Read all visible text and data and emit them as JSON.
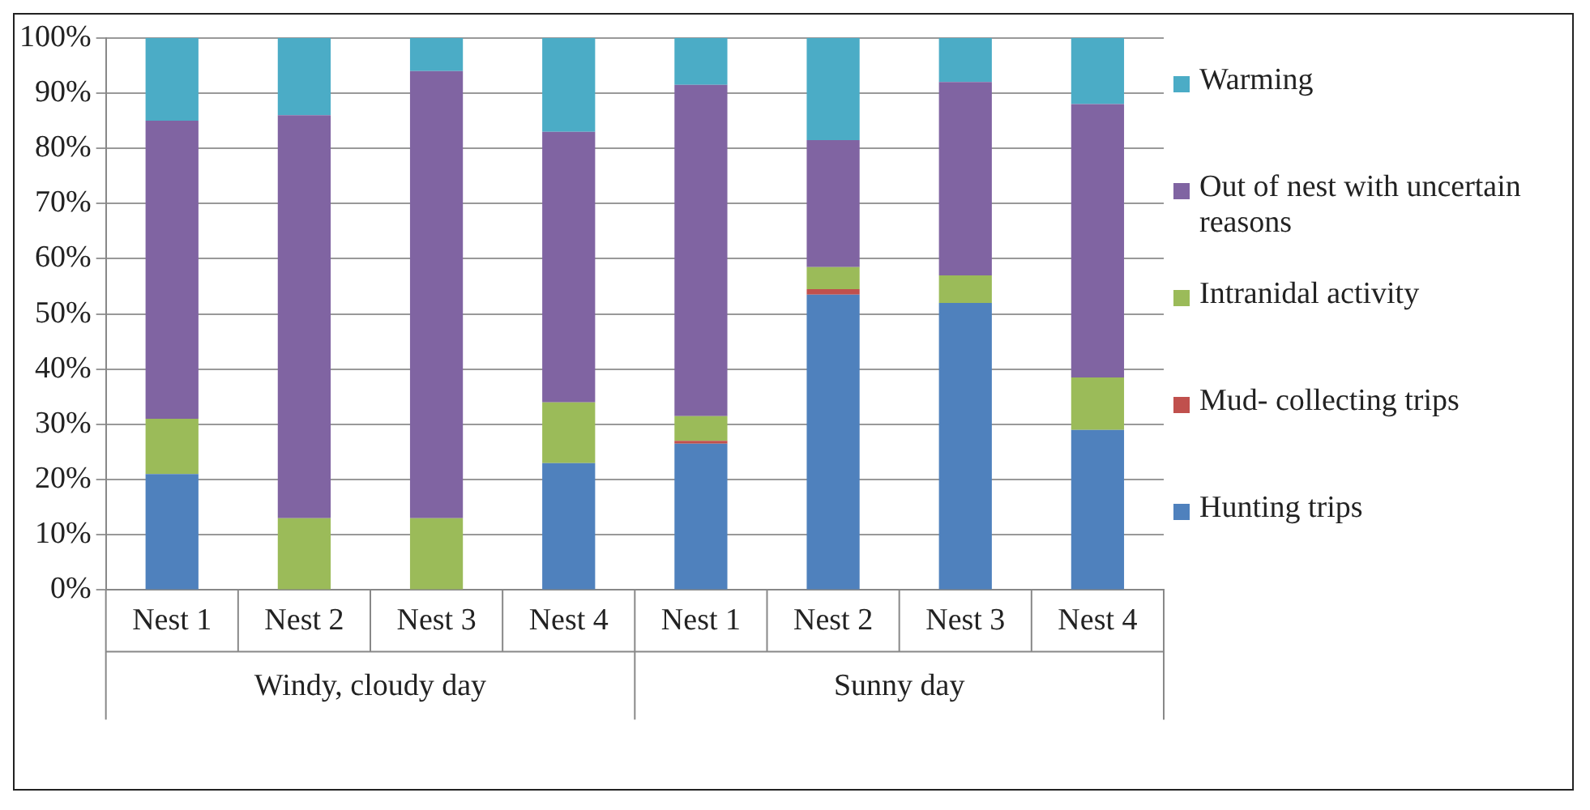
{
  "chart_data": {
    "type": "bar",
    "stacked": true,
    "categories": [
      "Nest 1",
      "Nest 2",
      "Nest 3",
      "Nest 4",
      "Nest 1",
      "Nest 2",
      "Nest 3",
      "Nest 4"
    ],
    "series": [
      {
        "name": "Hunting trips",
        "color": "#4f81bd",
        "values": [
          21,
          0,
          0,
          23,
          26.5,
          53.5,
          52,
          29
        ]
      },
      {
        "name": "Mud- collecting trips",
        "color": "#c0504d",
        "values": [
          0,
          0,
          0,
          0,
          0.5,
          1,
          0,
          0
        ]
      },
      {
        "name": "Intranidal activity",
        "color": "#9bbb59",
        "values": [
          10,
          13,
          13,
          11,
          4.5,
          4,
          5,
          9.5
        ]
      },
      {
        "name": "Out of nest with uncertain reasons",
        "color": "#8064a2",
        "values": [
          54,
          73,
          81,
          49,
          60,
          23,
          35,
          49.5
        ]
      },
      {
        "name": "Warming",
        "color": "#4bacc6",
        "values": [
          15,
          14,
          6,
          17,
          8.5,
          18.5,
          8,
          12
        ]
      }
    ],
    "ylim": [
      0,
      100
    ],
    "yticks": [
      {
        "value": 0,
        "label": "0%"
      },
      {
        "value": 10,
        "label": "10%"
      },
      {
        "value": 20,
        "label": "20%"
      },
      {
        "value": 30,
        "label": "30%"
      },
      {
        "value": 40,
        "label": "40%"
      },
      {
        "value": 50,
        "label": "50%"
      },
      {
        "value": 60,
        "label": "60%"
      },
      {
        "value": 70,
        "label": "70%"
      },
      {
        "value": 80,
        "label": "80%"
      },
      {
        "value": 90,
        "label": "90%"
      },
      {
        "value": 100,
        "label": "100%"
      }
    ],
    "grid": "y",
    "legend": "right",
    "annotations": [
      "Windy, cloudy day",
      "Sunny day"
    ]
  }
}
